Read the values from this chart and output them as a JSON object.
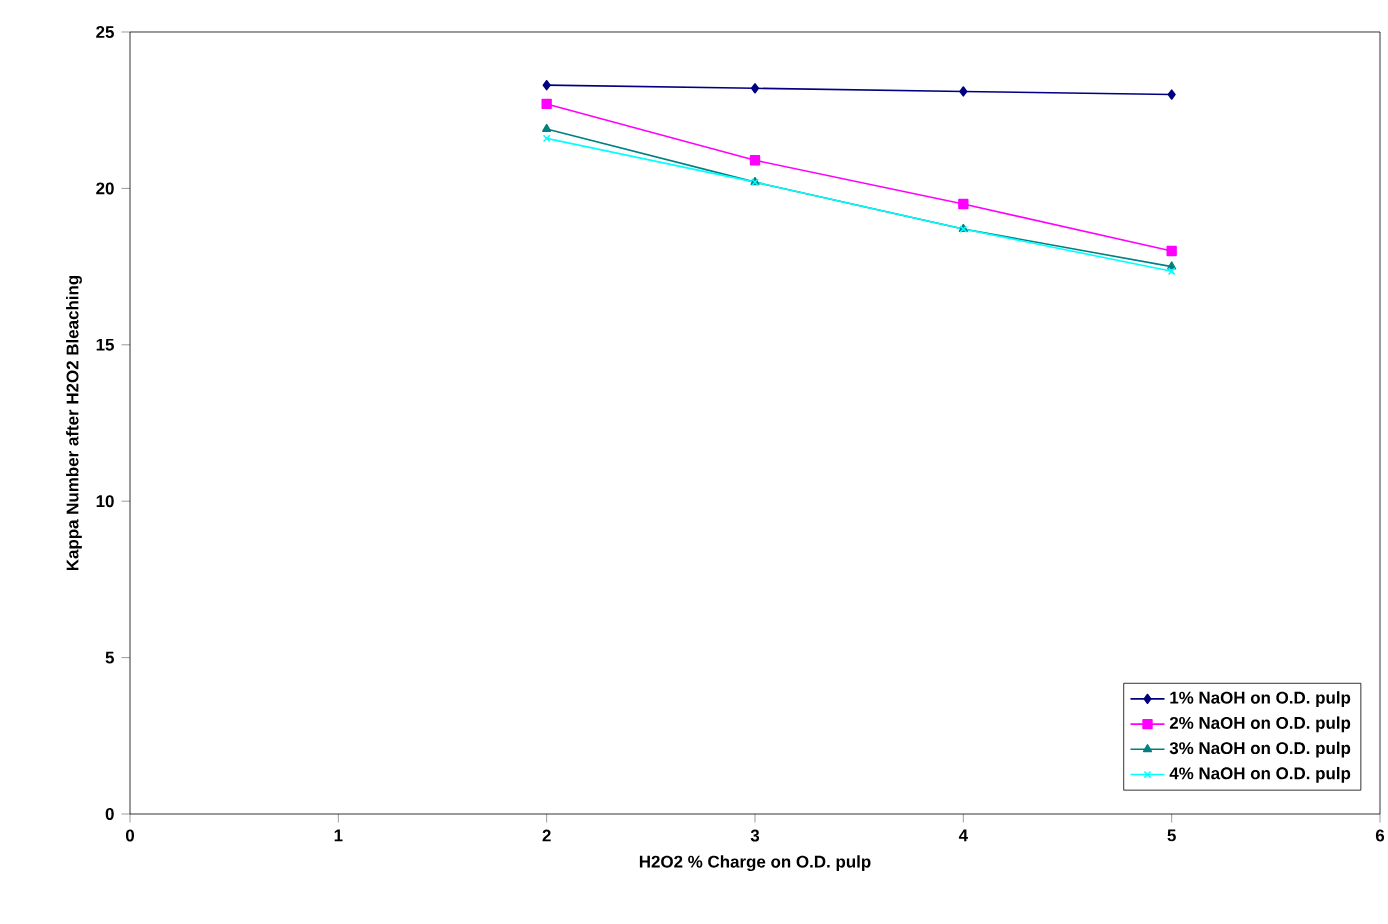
{
  "chart_data": {
    "type": "line",
    "xlabel": "H2O2 % Charge on O.D. pulp",
    "ylabel": "Kappa Number after H2O2 Bleaching",
    "x": [
      2,
      3,
      4,
      5
    ],
    "xlim": [
      0,
      6
    ],
    "xticks": [
      0,
      1,
      2,
      3,
      4,
      5,
      6
    ],
    "ylim": [
      0,
      25
    ],
    "yticks": [
      0,
      5,
      10,
      15,
      20,
      25
    ],
    "grid": false,
    "legend": "bottom right",
    "series": [
      {
        "name": "1% NaOH on O.D. pulp",
        "color": "#000080",
        "marker": "diamond",
        "values": [
          23.3,
          23.2,
          23.1,
          23.0
        ]
      },
      {
        "name": "2% NaOH on O.D. pulp",
        "color": "#ff00ff",
        "marker": "square",
        "values": [
          22.7,
          20.9,
          19.5,
          18.0
        ]
      },
      {
        "name": "3% NaOH on O.D. pulp",
        "color": "#008080",
        "marker": "triangle",
        "values": [
          21.9,
          20.2,
          18.7,
          17.5
        ]
      },
      {
        "name": "4% NaOH on O.D. pulp",
        "color": "#00ffff",
        "marker": "cross",
        "values": [
          21.6,
          20.2,
          18.7,
          17.35
        ]
      }
    ]
  }
}
